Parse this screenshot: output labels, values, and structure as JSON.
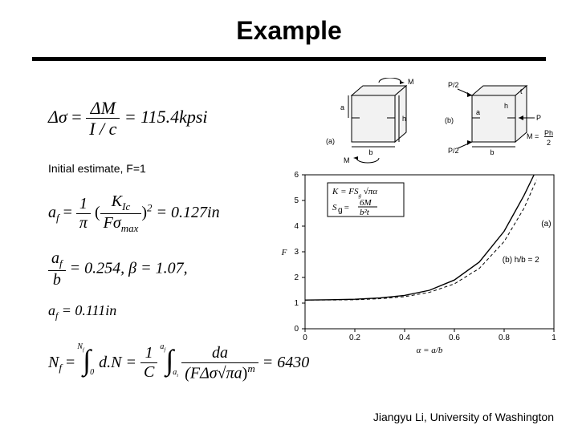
{
  "title": "Example",
  "equations": {
    "eq1_lhs": "Δσ",
    "eq1_frac_num": "ΔM",
    "eq1_frac_den": "I / c",
    "eq1_rhs": "= 115.4kpsi",
    "note": "Initial estimate, F=1",
    "eq2_a": "a",
    "eq2_fsub": "f",
    "eq2_eq": " = ",
    "eq2_frac1_num": "1",
    "eq2_frac1_den": "π",
    "eq2_open": "(",
    "eq2_Knum": "K",
    "eq2_Ksub": "Ic",
    "eq2_Fden": "Fσ",
    "eq2_maxsub": "max",
    "eq2_close": ")",
    "eq2_sup": "2",
    "eq2_rhs": " = 0.127in",
    "eq3_num_a": "a",
    "eq3_num_sub": "f",
    "eq3_den": "b",
    "eq3_mid": " = 0.254, β = 1.07,",
    "eq4": "a",
    "eq4_sub": "f",
    "eq4_rhs": " = 0.111in",
    "eq5_N": "N",
    "eq5_Nsub": "f",
    "eq5_eq": " = ",
    "eq5_dN": "d.N = ",
    "eq5_C": "C",
    "eq5_1": "1",
    "eq5_da": "da",
    "eq5_F": "(FΔσ",
    "eq5_sqrt": "√πa",
    "eq5_close": ")",
    "eq5_m": "m",
    "eq5_rhs": " = 6430",
    "eq5_lim_top1": "N",
    "eq5_lim_top1sub": "f",
    "eq5_lim_bot1": "0",
    "eq5_lim_top2": "a",
    "eq5_lim_top2sub": "f",
    "eq5_lim_bot2": "a",
    "eq5_lim_bot2sub": "i"
  },
  "footer": "Jiangyu Li, University of Washington",
  "diagrams": {
    "left_label_a": "a",
    "left_label_b": "b",
    "left_label_h": "h",
    "left_label_M1": "M",
    "left_label_M2": "M",
    "left_tag": "(a)",
    "right_label_a": "a",
    "right_label_b": "b",
    "right_label_h": "h",
    "right_label_t": "t",
    "right_P1": "P/2",
    "right_P2": "P/2",
    "right_P": "P",
    "right_M": "M = ",
    "right_Mfrac_num": "Ph",
    "right_Mfrac_den": "2",
    "right_tag": "(b)"
  },
  "chart": {
    "xlabel": "α = a/b",
    "ylabel": "F",
    "xticks": [
      0,
      0.2,
      0.4,
      0.6,
      0.8,
      1.0
    ],
    "yticks": [
      0,
      1,
      2,
      3,
      4,
      5,
      6
    ],
    "curve_a": [
      {
        "x": 0.0,
        "y": 1.12
      },
      {
        "x": 0.1,
        "y": 1.13
      },
      {
        "x": 0.2,
        "y": 1.15
      },
      {
        "x": 0.3,
        "y": 1.2
      },
      {
        "x": 0.4,
        "y": 1.3
      },
      {
        "x": 0.5,
        "y": 1.5
      },
      {
        "x": 0.6,
        "y": 1.9
      },
      {
        "x": 0.7,
        "y": 2.6
      },
      {
        "x": 0.8,
        "y": 3.8
      },
      {
        "x": 0.88,
        "y": 5.2
      },
      {
        "x": 0.92,
        "y": 6.0
      }
    ],
    "curve_b": [
      {
        "x": 0.0,
        "y": 1.12
      },
      {
        "x": 0.1,
        "y": 1.12
      },
      {
        "x": 0.2,
        "y": 1.13
      },
      {
        "x": 0.3,
        "y": 1.17
      },
      {
        "x": 0.4,
        "y": 1.25
      },
      {
        "x": 0.5,
        "y": 1.42
      },
      {
        "x": 0.6,
        "y": 1.75
      },
      {
        "x": 0.7,
        "y": 2.35
      },
      {
        "x": 0.8,
        "y": 3.4
      },
      {
        "x": 0.88,
        "y": 4.7
      },
      {
        "x": 0.93,
        "y": 5.8
      }
    ],
    "tag_a": "(a)",
    "tag_b": "(b) h/b = 2",
    "box_k_lhs": "K = FS",
    "box_k_sub": "g",
    "box_k_rhs": " √πα",
    "box_sg": "S",
    "box_sg_sub": "g",
    "box_sg_eq": " = ",
    "box_6M": "6M",
    "box_b2t": "b²t",
    "bg_color": "#ffffff",
    "axis_color": "#000000"
  }
}
